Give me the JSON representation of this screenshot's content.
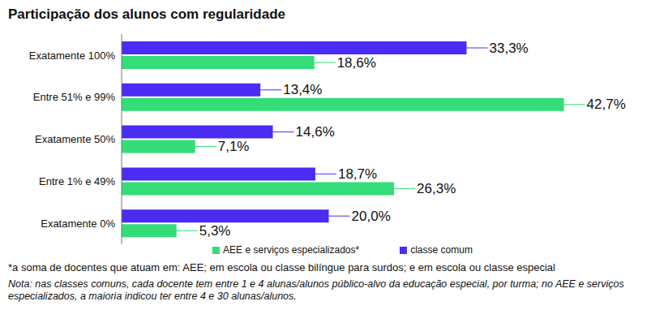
{
  "chart_data": {
    "type": "bar",
    "orientation": "horizontal",
    "title": "Participação dos alunos com regularidade",
    "categories": [
      "Exatamente 100%",
      "Entre 51% e 99%",
      "Exatamente 50%",
      "Entre 1% e 49%",
      "Exatamente 0%"
    ],
    "series": [
      {
        "name": "classe comum",
        "color": "#4a2cf2",
        "values": [
          33.3,
          13.4,
          14.6,
          18.7,
          20.0
        ],
        "value_labels": [
          "33,3%",
          "13,4%",
          "14,6%",
          "18,7%",
          "20,0%"
        ]
      },
      {
        "name": "AEE e serviços especializados*",
        "color": "#33dd77",
        "values": [
          18.6,
          42.7,
          7.1,
          26.3,
          5.3
        ],
        "value_labels": [
          "18,6%",
          "42,7%",
          "7,1%",
          "26,3%",
          "5,3%"
        ]
      }
    ],
    "xlim": [
      0,
      45
    ],
    "data_labels": true,
    "tick_labels": "y",
    "legend": "bottom",
    "grid": false,
    "annotations": [
      "*a soma de docentes que atuam em: AEE; em escola ou classe bilíngue para surdos; e em escola ou classe especial",
      "Nota: nas classes comuns, cada docente tem entre 1 e 4 alunas/alunos público-alvo da educação especial, por turma; no AEE e serviços especializados, a maioria indicou ter entre 4 e 30 alunas/alunos."
    ]
  }
}
